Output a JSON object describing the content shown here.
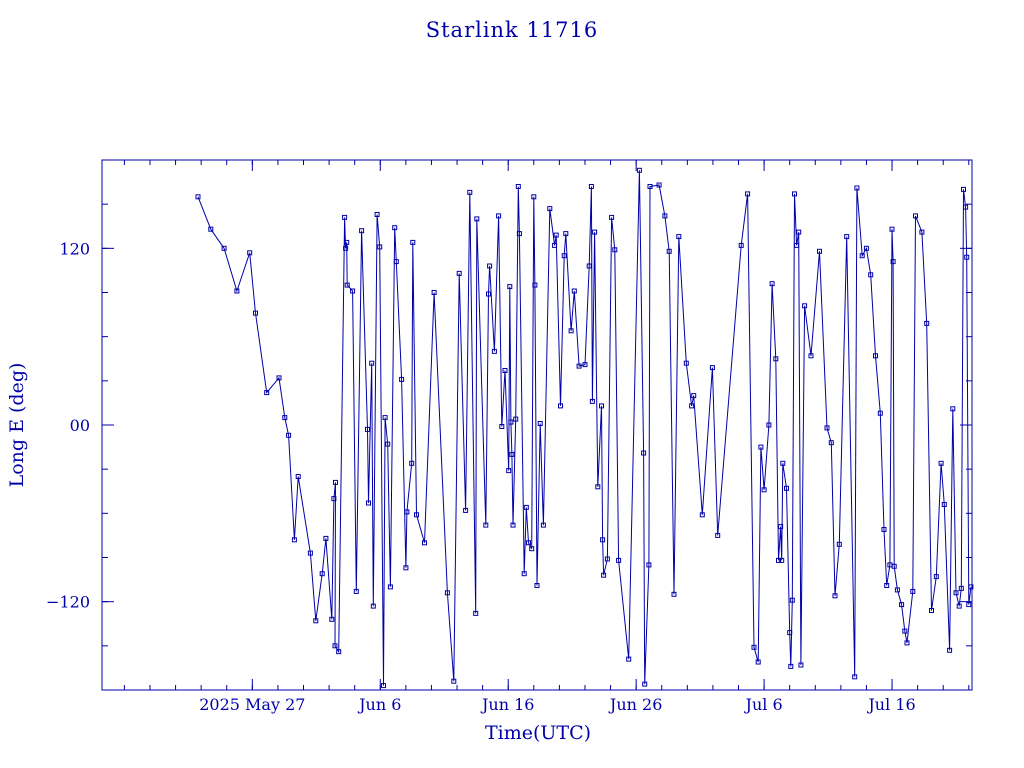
{
  "chart_data": {
    "type": "scatter",
    "title": "Starlink 11716",
    "xlabel": "Time(UTC)",
    "ylabel": "Long E (deg)",
    "xlim": [
      "2025-05-15T06:00",
      "2025-07-22T06:00"
    ],
    "ylim": [
      -180,
      180
    ],
    "x_ticks": [
      {
        "value": "2025-05-27",
        "label": "2025 May 27"
      },
      {
        "value": "2025-06-06",
        "label": "Jun  6"
      },
      {
        "value": "2025-06-16",
        "label": "Jun 16"
      },
      {
        "value": "2025-06-26",
        "label": "Jun 26"
      },
      {
        "value": "2025-07-06",
        "label": "Jul  6"
      },
      {
        "value": "2025-07-16",
        "label": "Jul 16"
      }
    ],
    "y_ticks": [
      {
        "value": 120,
        "label": "120"
      },
      {
        "value": 0,
        "label": "00"
      },
      {
        "value": -120,
        "label": "−120"
      }
    ],
    "grid": false,
    "color": "#0000a8",
    "points": [
      [
        "2025-05-22T18:00",
        155
      ],
      [
        "2025-05-23T18:00",
        133
      ],
      [
        "2025-05-24T19:00",
        120
      ],
      [
        "2025-05-25T19:00",
        91
      ],
      [
        "2025-05-26T19:00",
        117
      ],
      [
        "2025-05-27T06:00",
        76
      ],
      [
        "2025-05-28T03:00",
        22
      ],
      [
        "2025-05-29T02:00",
        32
      ],
      [
        "2025-05-29T13:00",
        5
      ],
      [
        "2025-05-29T20:00",
        -7
      ],
      [
        "2025-05-30T07:00",
        -78
      ],
      [
        "2025-05-30T14:00",
        -35
      ],
      [
        "2025-05-31T13:00",
        -87
      ],
      [
        "2025-05-31T23:00",
        -133
      ],
      [
        "2025-06-01T11:00",
        -101
      ],
      [
        "2025-06-01T18:00",
        -77
      ],
      [
        "2025-06-02T05:00",
        -132
      ],
      [
        "2025-06-02T09:00",
        -50
      ],
      [
        "2025-06-02T12:00",
        -39
      ],
      [
        "2025-06-02T11:00",
        -150
      ],
      [
        "2025-06-02T18:00",
        -154
      ],
      [
        "2025-06-03T05:00",
        141
      ],
      [
        "2025-06-03T07:00",
        120
      ],
      [
        "2025-06-03T09:00",
        124
      ],
      [
        "2025-06-03T10:00",
        95
      ],
      [
        "2025-06-03T20:00",
        91
      ],
      [
        "2025-06-04T03:00",
        -113
      ],
      [
        "2025-06-04T13:00",
        132
      ],
      [
        "2025-06-05T00:00",
        -3
      ],
      [
        "2025-06-05T02:00",
        -53
      ],
      [
        "2025-06-05T08:00",
        42
      ],
      [
        "2025-06-05T11:00",
        -123
      ],
      [
        "2025-06-05T18:00",
        143
      ],
      [
        "2025-06-05T23:00",
        121
      ],
      [
        "2025-06-06T06:00",
        -177
      ],
      [
        "2025-06-06T09:00",
        5
      ],
      [
        "2025-06-06T14:00",
        -13
      ],
      [
        "2025-06-06T19:00",
        -110
      ],
      [
        "2025-06-07T03:00",
        134
      ],
      [
        "2025-06-07T06:00",
        111
      ],
      [
        "2025-06-07T16:00",
        31
      ],
      [
        "2025-06-08T00:00",
        -97
      ],
      [
        "2025-06-08T02:00",
        -59
      ],
      [
        "2025-06-08T11:00",
        -26
      ],
      [
        "2025-06-08T13:00",
        124
      ],
      [
        "2025-06-08T20:00",
        -61
      ],
      [
        "2025-06-09T11:00",
        -80
      ],
      [
        "2025-06-10T05:00",
        90
      ],
      [
        "2025-06-11T06:00",
        -114
      ],
      [
        "2025-06-11T18:00",
        -174
      ],
      [
        "2025-06-12T04:00",
        103
      ],
      [
        "2025-06-12T16:00",
        -58
      ],
      [
        "2025-06-13T00:00",
        158
      ],
      [
        "2025-06-13T11:00",
        -128
      ],
      [
        "2025-06-13T13:00",
        140
      ],
      [
        "2025-06-14T06:00",
        -68
      ],
      [
        "2025-06-14T11:00",
        89
      ],
      [
        "2025-06-14T13:00",
        108
      ],
      [
        "2025-06-14T22:00",
        50
      ],
      [
        "2025-06-15T06:00",
        142
      ],
      [
        "2025-06-15T12:00",
        -1
      ],
      [
        "2025-06-15T18:00",
        37
      ],
      [
        "2025-06-16T01:00",
        -31
      ],
      [
        "2025-06-16T03:00",
        94
      ],
      [
        "2025-06-16T05:00",
        2
      ],
      [
        "2025-06-16T07:00",
        -20
      ],
      [
        "2025-06-16T09:00",
        -68
      ],
      [
        "2025-06-16T14:00",
        4
      ],
      [
        "2025-06-16T19:00",
        162
      ],
      [
        "2025-06-16T21:00",
        130
      ],
      [
        "2025-06-17T06:00",
        -101
      ],
      [
        "2025-06-17T10:00",
        -56
      ],
      [
        "2025-06-17T14:00",
        -80
      ],
      [
        "2025-06-17T20:00",
        -84
      ],
      [
        "2025-06-18T00:00",
        155
      ],
      [
        "2025-06-18T02:00",
        95
      ],
      [
        "2025-06-18T06:00",
        -109
      ],
      [
        "2025-06-18T12:00",
        1
      ],
      [
        "2025-06-18T18:00",
        -68
      ],
      [
        "2025-06-19T06:00",
        147
      ],
      [
        "2025-06-19T15:00",
        122
      ],
      [
        "2025-06-19T18:00",
        129
      ],
      [
        "2025-06-20T02:00",
        13
      ],
      [
        "2025-06-20T09:00",
        115
      ],
      [
        "2025-06-20T12:00",
        130
      ],
      [
        "2025-06-20T22:00",
        64
      ],
      [
        "2025-06-21T04:00",
        91
      ],
      [
        "2025-06-21T13:00",
        40
      ],
      [
        "2025-06-22T00:00",
        41
      ],
      [
        "2025-06-22T08:00",
        108
      ],
      [
        "2025-06-22T12:00",
        162
      ],
      [
        "2025-06-22T14:00",
        16
      ],
      [
        "2025-06-22T18:00",
        131
      ],
      [
        "2025-06-23T00:00",
        -42
      ],
      [
        "2025-06-23T07:00",
        13
      ],
      [
        "2025-06-23T09:00",
        -78
      ],
      [
        "2025-06-23T11:00",
        -102
      ],
      [
        "2025-06-23T18:00",
        -91
      ],
      [
        "2025-06-24T02:00",
        141
      ],
      [
        "2025-06-24T08:00",
        119
      ],
      [
        "2025-06-24T15:00",
        -92
      ],
      [
        "2025-06-25T10:00",
        -159
      ],
      [
        "2025-06-26T06:00",
        173
      ],
      [
        "2025-06-26T14:00",
        -19
      ],
      [
        "2025-06-26T16:00",
        -176
      ],
      [
        "2025-06-27T00:00",
        -95
      ],
      [
        "2025-06-27T02:00",
        162
      ],
      [
        "2025-06-27T19:00",
        163
      ],
      [
        "2025-06-28T06:00",
        142
      ],
      [
        "2025-06-28T14:00",
        118
      ],
      [
        "2025-06-28T23:00",
        -115
      ],
      [
        "2025-06-29T08:00",
        128
      ],
      [
        "2025-06-29T22:00",
        42
      ],
      [
        "2025-06-30T08:00",
        13
      ],
      [
        "2025-06-30T12:00",
        20
      ],
      [
        "2025-07-01T04:00",
        -61
      ],
      [
        "2025-07-01T23:00",
        39
      ],
      [
        "2025-07-02T09:00",
        -75
      ],
      [
        "2025-07-04T05:00",
        122
      ],
      [
        "2025-07-04T17:00",
        157
      ],
      [
        "2025-07-05T05:00",
        -151
      ],
      [
        "2025-07-05T13:00",
        -161
      ],
      [
        "2025-07-05T18:00",
        -15
      ],
      [
        "2025-07-06T00:00",
        -44
      ],
      [
        "2025-07-06T09:00",
        0
      ],
      [
        "2025-07-06T15:00",
        96
      ],
      [
        "2025-07-06T22:00",
        45
      ],
      [
        "2025-07-07T03:00",
        -92
      ],
      [
        "2025-07-07T07:00",
        -69
      ],
      [
        "2025-07-07T09:00",
        -92
      ],
      [
        "2025-07-07T11:00",
        -26
      ],
      [
        "2025-07-07T18:00",
        -43
      ],
      [
        "2025-07-08T00:00",
        -141
      ],
      [
        "2025-07-08T02:00",
        -164
      ],
      [
        "2025-07-08T05:00",
        -119
      ],
      [
        "2025-07-08T09:00",
        157
      ],
      [
        "2025-07-08T13:00",
        122
      ],
      [
        "2025-07-08T17:00",
        131
      ],
      [
        "2025-07-08T21:00",
        -163
      ],
      [
        "2025-07-09T04:00",
        81
      ],
      [
        "2025-07-09T16:00",
        47
      ],
      [
        "2025-07-10T08:00",
        118
      ],
      [
        "2025-07-10T22:00",
        -2
      ],
      [
        "2025-07-11T06:00",
        -12
      ],
      [
        "2025-07-11T13:00",
        -116
      ],
      [
        "2025-07-11T21:00",
        -81
      ],
      [
        "2025-07-12T11:00",
        128
      ],
      [
        "2025-07-13T02:00",
        -171
      ],
      [
        "2025-07-13T06:00",
        161
      ],
      [
        "2025-07-13T16:00",
        115
      ],
      [
        "2025-07-14T00:00",
        120
      ],
      [
        "2025-07-14T08:00",
        102
      ],
      [
        "2025-07-14T17:00",
        47
      ],
      [
        "2025-07-15T02:00",
        8
      ],
      [
        "2025-07-15T09:00",
        -71
      ],
      [
        "2025-07-15T14:00",
        -109
      ],
      [
        "2025-07-15T20:00",
        -95
      ],
      [
        "2025-07-16T00:00",
        133
      ],
      [
        "2025-07-16T02:00",
        111
      ],
      [
        "2025-07-16T04:00",
        -96
      ],
      [
        "2025-07-16T10:00",
        -112
      ],
      [
        "2025-07-16T18:00",
        -122
      ],
      [
        "2025-07-17T00:00",
        -140
      ],
      [
        "2025-07-17T04:00",
        -148
      ],
      [
        "2025-07-17T15:00",
        -113
      ],
      [
        "2025-07-17T20:00",
        142
      ],
      [
        "2025-07-18T08:00",
        131
      ],
      [
        "2025-07-18T17:00",
        69
      ],
      [
        "2025-07-19T02:00",
        -126
      ],
      [
        "2025-07-19T11:00",
        -103
      ],
      [
        "2025-07-19T20:00",
        -26
      ],
      [
        "2025-07-20T02:00",
        -54
      ],
      [
        "2025-07-20T12:00",
        -153
      ],
      [
        "2025-07-20T18:00",
        11
      ],
      [
        "2025-07-21T00:00",
        -114
      ],
      [
        "2025-07-21T06:00",
        -123
      ],
      [
        "2025-07-21T10:00",
        -111
      ],
      [
        "2025-07-21T14:00",
        160
      ],
      [
        "2025-07-21T18:00",
        148
      ],
      [
        "2025-07-21T20:00",
        114
      ],
      [
        "2025-07-22T00:00",
        -122
      ],
      [
        "2025-07-22T04:00",
        -110
      ]
    ]
  }
}
